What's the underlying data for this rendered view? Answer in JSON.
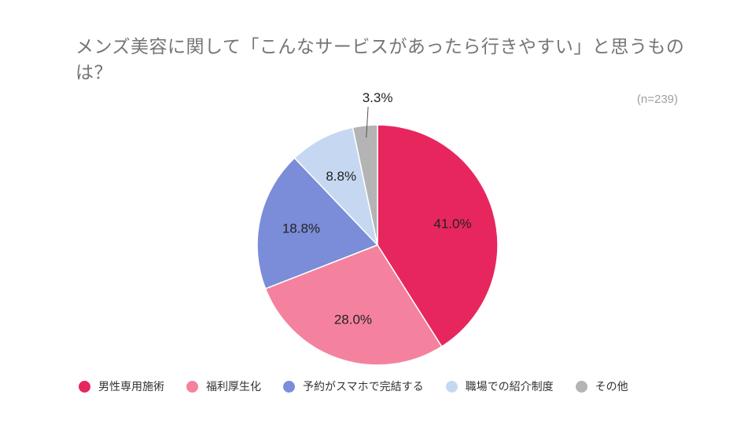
{
  "chart_data": {
    "type": "pie",
    "title": "メンズ美容に関して「こんなサービスがあったら行きやすい」と思うものは？",
    "note": "(n=239)",
    "start": "top, clockwise",
    "slices": [
      {
        "label": "男性専用施術",
        "value": 41.0,
        "display": "41.0%",
        "color": "#e8265e"
      },
      {
        "label": "福利厚生化",
        "value": 28.0,
        "display": "28.0%",
        "color": "#f4829f"
      },
      {
        "label": "予約がスマホで完結する",
        "value": 18.8,
        "display": "18.8%",
        "color": "#7b8cd8"
      },
      {
        "label": "職場での紹介制度",
        "value": 8.8,
        "display": "8.8%",
        "color": "#c6d8f1"
      },
      {
        "label": "その他",
        "value": 3.3,
        "display": "3.3%",
        "color": "#b4b4b4"
      }
    ],
    "legend_position": "bottom"
  }
}
